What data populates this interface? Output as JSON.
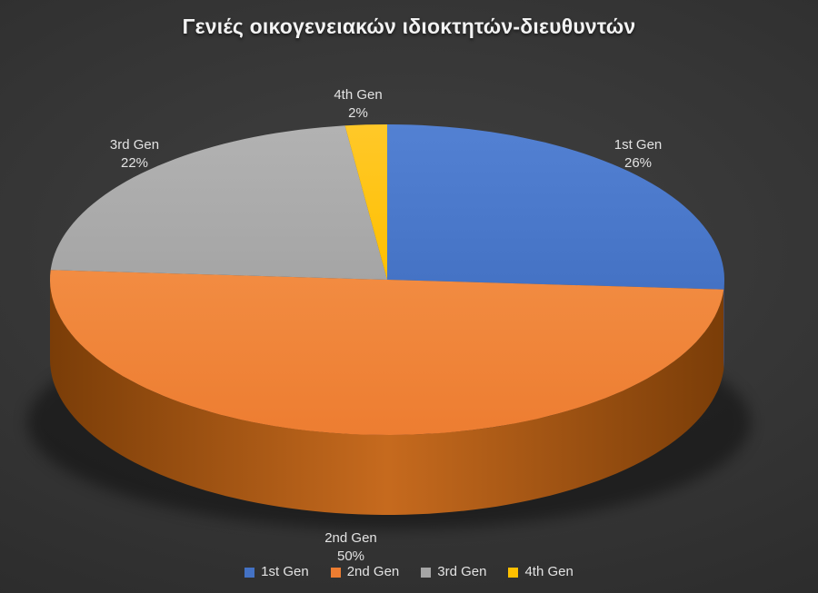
{
  "title": "Γενιές οικογενειακών ιδιοκτητών-διευθυντών",
  "chart_data": {
    "type": "pie",
    "is_3d": true,
    "title": "Γενιές οικογενειακών ιδιοκτητών-διευθυντών",
    "start_angle_deg": 0,
    "direction": "clockwise",
    "legend_position": "bottom",
    "slices": [
      {
        "label": "1st Gen",
        "value": 26,
        "value_label": "26%",
        "color": "#4472C4",
        "color_light": "#5381d3",
        "color_dark": "#2c4e8e",
        "side_mid": "#35599f"
      },
      {
        "label": "2nd Gen",
        "value": 50,
        "value_label": "50%",
        "color": "#ED7D31",
        "color_light": "#f28c42",
        "color_dark": "#7a3d08",
        "side_mid": "#c66a1e"
      },
      {
        "label": "3rd Gen",
        "value": 22,
        "value_label": "22%",
        "color": "#A5A5A5",
        "color_light": "#b2b2b2",
        "color_dark": "#777777",
        "side_mid": "#8e8e8e"
      },
      {
        "label": "4th Gen",
        "value": 2,
        "value_label": "2%",
        "color": "#FFC000",
        "color_light": "#ffc829",
        "color_dark": "#b38600",
        "side_mid": "#d9a400"
      }
    ],
    "data_label_style": "category name + percent, outside slices",
    "text_color": "#e3e3e3"
  }
}
